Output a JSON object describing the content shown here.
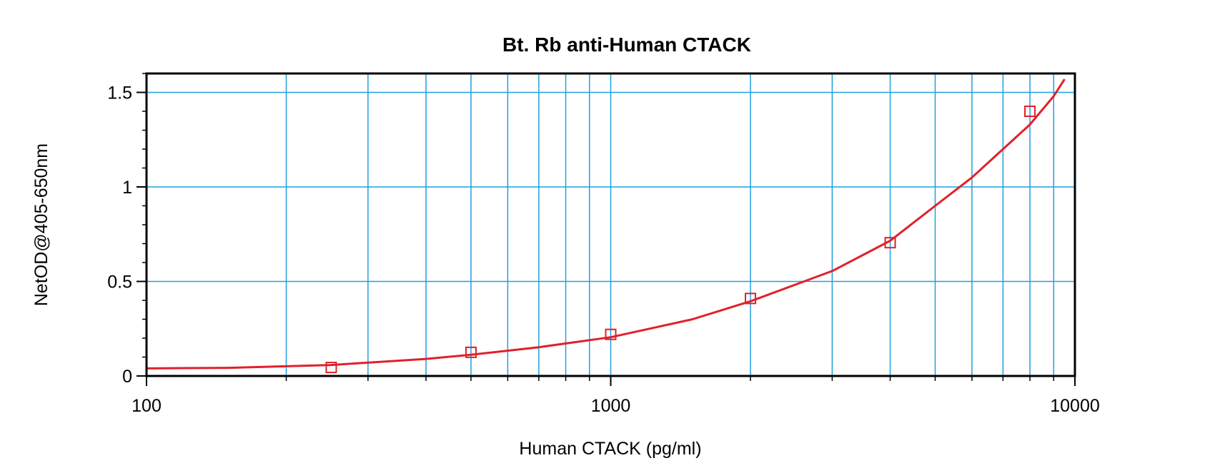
{
  "chart_data": {
    "type": "scatter",
    "title": "Bt. Rb anti-Human CTACK",
    "xlabel": "Human CTACK (pg/ml)",
    "ylabel": "NetOD@405-650nm",
    "x_scale": "log",
    "xlim": [
      100,
      10000
    ],
    "ylim": [
      0,
      1.6
    ],
    "x_ticks": [
      {
        "value": 100,
        "label": "100"
      },
      {
        "value": 1000,
        "label": "1000"
      },
      {
        "value": 10000,
        "label": "10000"
      }
    ],
    "y_ticks": [
      {
        "value": 0,
        "label": "0"
      },
      {
        "value": 0.5,
        "label": "0.5"
      },
      {
        "value": 1,
        "label": "1"
      },
      {
        "value": 1.5,
        "label": "1.5"
      }
    ],
    "grid": true,
    "grid_color": "#1fa0e0",
    "series": [
      {
        "marker": "open-square",
        "color": "#e0202a",
        "x": [
          250,
          500,
          1000,
          2000,
          4000,
          8000
        ],
        "y": [
          0.045,
          0.125,
          0.22,
          0.41,
          0.705,
          1.4
        ]
      }
    ],
    "fit_curve": {
      "color": "#e0202a",
      "x": [
        100,
        150,
        250,
        400,
        500,
        700,
        1000,
        1500,
        2000,
        3000,
        4000,
        5000,
        6000,
        7000,
        8000,
        9000,
        9500
      ],
      "y": [
        0.04,
        0.043,
        0.058,
        0.09,
        0.112,
        0.152,
        0.205,
        0.3,
        0.395,
        0.555,
        0.715,
        0.9,
        1.05,
        1.2,
        1.33,
        1.48,
        1.57
      ]
    }
  }
}
